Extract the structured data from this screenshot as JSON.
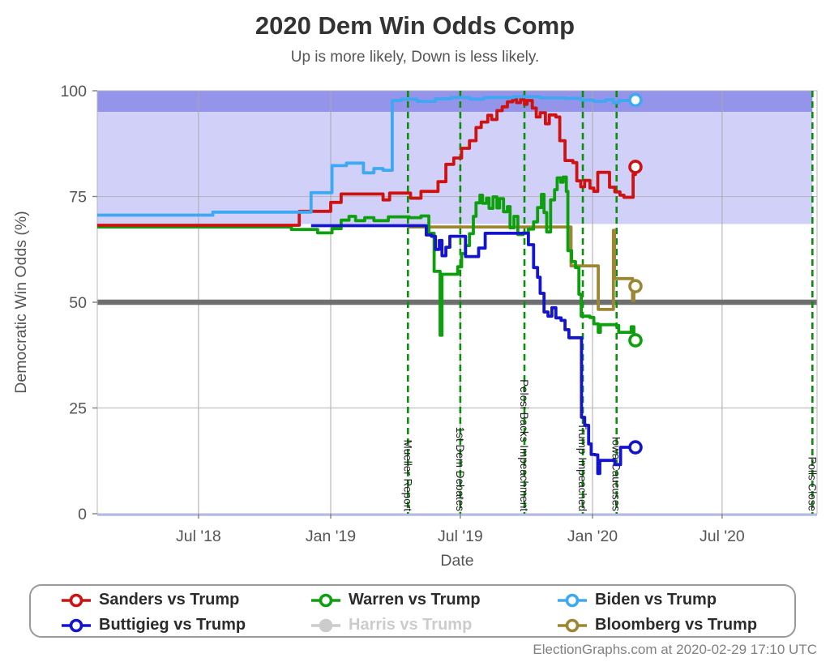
{
  "header": {
    "title": "2020 Dem Win Odds Comp",
    "subtitle": "Up is more likely, Down is less likely."
  },
  "footer": {
    "credit": "ElectionGraphs.com at 2020-02-29 17:10 UTC"
  },
  "legend": {
    "items": [
      {
        "id": "sanders",
        "label": "Sanders vs Trump",
        "color": "#cf1111",
        "disabled": false
      },
      {
        "id": "warren",
        "label": "Warren vs Trump",
        "color": "#0d9f0d",
        "disabled": false
      },
      {
        "id": "biden",
        "label": "Biden vs Trump",
        "color": "#3ea8f2",
        "disabled": false
      },
      {
        "id": "buttigieg",
        "label": "Buttigieg vs Trump",
        "color": "#1414cc",
        "disabled": false
      },
      {
        "id": "harris",
        "label": "Harris vs Trump",
        "color": "#cccccc",
        "disabled": true
      },
      {
        "id": "bloomberg",
        "label": "Bloomberg vs Trump",
        "color": "#9b8733",
        "disabled": false
      }
    ]
  },
  "chart_data": {
    "type": "line",
    "title": "2020 Dem Win Odds Comp",
    "subtitle": "Up is more likely, Down is less likely.",
    "xlabel": "Date",
    "ylabel": "Democratic Win Odds (%)",
    "ylim": [
      0,
      100
    ],
    "yticks": [
      0,
      25,
      50,
      75,
      100
    ],
    "x_domain_decimal_years": [
      2018.108,
      2020.857
    ],
    "xticks": [
      {
        "label": "Jul '18",
        "date": 2018.495
      },
      {
        "label": "Jan '19",
        "date": 2019.0
      },
      {
        "label": "Jul '19",
        "date": 2019.495
      },
      {
        "label": "Jan '20",
        "date": 2020.0
      },
      {
        "label": "Jul '20",
        "date": 2020.495
      }
    ],
    "bands": [
      {
        "from": 95,
        "to": 100,
        "color": "#9394ea"
      },
      {
        "from": 68.5,
        "to": 95,
        "color": "#d0d0f8"
      }
    ],
    "reference_line": {
      "value": 50,
      "color": "#6f6f6f"
    },
    "grid": true,
    "legend_position": "bottom",
    "events": [
      {
        "id": "mueller-report",
        "label": "Mueller Report",
        "date": 2019.295
      },
      {
        "id": "first-dem-debates",
        "label": "1st Dem Debates",
        "date": 2019.495
      },
      {
        "id": "pelosi-backs-impeachment",
        "label": "Pelosi Backs Impeachment",
        "date": 2019.74
      },
      {
        "id": "trump-impeached",
        "label": "Trump Impeached",
        "date": 2019.963
      },
      {
        "id": "iowa-caucuses",
        "label": "Iowa Caucuses",
        "date": 2020.092
      },
      {
        "id": "polls-close",
        "label": "Polls Close",
        "date": 2020.84
      }
    ],
    "end_of_data_date": 2020.164,
    "series": [
      {
        "id": "bloomberg",
        "name": "Bloomberg vs Trump",
        "color": "#9b8733",
        "end_value": 53.8,
        "points": [
          [
            2019.295,
            67.8
          ],
          [
            2019.91,
            67.8
          ],
          [
            2019.918,
            58.6
          ],
          [
            2020.015,
            58.6
          ],
          [
            2020.022,
            48.3
          ],
          [
            2020.075,
            48.3
          ],
          [
            2020.08,
            67.0
          ],
          [
            2020.084,
            55.6
          ],
          [
            2020.148,
            55.6
          ],
          [
            2020.153,
            50.4
          ],
          [
            2020.158,
            53.8
          ],
          [
            2020.164,
            53.8
          ]
        ]
      },
      {
        "id": "warren",
        "name": "Warren vs Trump",
        "color": "#0d9f0d",
        "end_value": 41.0,
        "points": [
          [
            2018.108,
            67.8
          ],
          [
            2018.85,
            67.2
          ],
          [
            2018.95,
            66.4
          ],
          [
            2019.005,
            67.4
          ],
          [
            2019.04,
            69.4
          ],
          [
            2019.07,
            70.3
          ],
          [
            2019.095,
            69.3
          ],
          [
            2019.13,
            70.0
          ],
          [
            2019.165,
            69.3
          ],
          [
            2019.22,
            70.2
          ],
          [
            2019.3,
            70.0
          ],
          [
            2019.345,
            70.4
          ],
          [
            2019.375,
            66.3
          ],
          [
            2019.395,
            57.3
          ],
          [
            2019.418,
            42.2
          ],
          [
            2019.425,
            56.6
          ],
          [
            2019.47,
            56.6
          ],
          [
            2019.485,
            58.4
          ],
          [
            2019.5,
            61.5
          ],
          [
            2019.515,
            63.4
          ],
          [
            2019.53,
            66.2
          ],
          [
            2019.545,
            70.3
          ],
          [
            2019.555,
            73.5
          ],
          [
            2019.57,
            75.3
          ],
          [
            2019.58,
            73.4
          ],
          [
            2019.595,
            74.6
          ],
          [
            2019.605,
            72.2
          ],
          [
            2019.62,
            74.9
          ],
          [
            2019.635,
            72.3
          ],
          [
            2019.645,
            74.5
          ],
          [
            2019.66,
            71.4
          ],
          [
            2019.675,
            72.6
          ],
          [
            2019.685,
            67.6
          ],
          [
            2019.7,
            70.3
          ],
          [
            2019.715,
            66.0
          ],
          [
            2019.735,
            66.4
          ],
          [
            2019.755,
            67.3
          ],
          [
            2019.775,
            69.0
          ],
          [
            2019.79,
            72.4
          ],
          [
            2019.805,
            75.5
          ],
          [
            2019.815,
            71.2
          ],
          [
            2019.825,
            66.6
          ],
          [
            2019.84,
            74.2
          ],
          [
            2019.855,
            76.6
          ],
          [
            2019.865,
            79.4
          ],
          [
            2019.878,
            78.4
          ],
          [
            2019.888,
            79.6
          ],
          [
            2019.9,
            76.2
          ],
          [
            2019.906,
            62.2
          ],
          [
            2019.92,
            59.6
          ],
          [
            2019.935,
            58.2
          ],
          [
            2019.948,
            51.9
          ],
          [
            2019.957,
            46.7
          ],
          [
            2019.99,
            46.4
          ],
          [
            2020.005,
            44.9
          ],
          [
            2020.022,
            42.9
          ],
          [
            2020.03,
            44.7
          ],
          [
            2020.09,
            44.5
          ],
          [
            2020.1,
            42.9
          ],
          [
            2020.135,
            42.9
          ],
          [
            2020.148,
            44.2
          ],
          [
            2020.158,
            41.0
          ],
          [
            2020.164,
            41.0
          ]
        ]
      },
      {
        "id": "buttigieg",
        "name": "Buttigieg vs Trump",
        "color": "#1414cc",
        "end_value": 15.7,
        "points": [
          [
            2018.925,
            68.1
          ],
          [
            2019.355,
            68.1
          ],
          [
            2019.365,
            65.9
          ],
          [
            2019.385,
            65.6
          ],
          [
            2019.4,
            62.5
          ],
          [
            2019.415,
            64.6
          ],
          [
            2019.425,
            61.0
          ],
          [
            2019.44,
            63.0
          ],
          [
            2019.455,
            65.6
          ],
          [
            2019.505,
            65.6
          ],
          [
            2019.515,
            60.8
          ],
          [
            2019.55,
            60.8
          ],
          [
            2019.565,
            62.8
          ],
          [
            2019.59,
            66.3
          ],
          [
            2019.74,
            66.3
          ],
          [
            2019.755,
            63.6
          ],
          [
            2019.775,
            58.2
          ],
          [
            2019.79,
            55.9
          ],
          [
            2019.8,
            52.1
          ],
          [
            2019.815,
            47.7
          ],
          [
            2019.83,
            46.7
          ],
          [
            2019.845,
            48.7
          ],
          [
            2019.86,
            46.3
          ],
          [
            2019.88,
            45.7
          ],
          [
            2019.895,
            43.5
          ],
          [
            2019.91,
            41.6
          ],
          [
            2019.955,
            41.6
          ],
          [
            2019.958,
            22.8
          ],
          [
            2019.97,
            20.9
          ],
          [
            2019.985,
            16.5
          ],
          [
            2019.995,
            14.0
          ],
          [
            2020.01,
            13.9
          ],
          [
            2020.02,
            9.5
          ],
          [
            2020.028,
            12.6
          ],
          [
            2020.075,
            12.6
          ],
          [
            2020.085,
            11.6
          ],
          [
            2020.103,
            11.6
          ],
          [
            2020.107,
            15.7
          ],
          [
            2020.164,
            15.7
          ]
        ]
      },
      {
        "id": "sanders",
        "name": "Sanders vs Trump",
        "color": "#cf1111",
        "end_value": 82.0,
        "points": [
          [
            2018.108,
            68.2
          ],
          [
            2018.88,
            71.5
          ],
          [
            2019.0,
            73.6
          ],
          [
            2019.04,
            75.6
          ],
          [
            2019.2,
            74.2
          ],
          [
            2019.225,
            75.8
          ],
          [
            2019.305,
            74.6
          ],
          [
            2019.345,
            76.2
          ],
          [
            2019.41,
            78.5
          ],
          [
            2019.44,
            82.6
          ],
          [
            2019.47,
            84.1
          ],
          [
            2019.5,
            86.4
          ],
          [
            2019.53,
            88.2
          ],
          [
            2019.555,
            91.3
          ],
          [
            2019.575,
            92.6
          ],
          [
            2019.6,
            94.2
          ],
          [
            2019.615,
            93.2
          ],
          [
            2019.635,
            95.3
          ],
          [
            2019.655,
            96.2
          ],
          [
            2019.675,
            97.4
          ],
          [
            2019.695,
            97.9
          ],
          [
            2019.71,
            97.2
          ],
          [
            2019.725,
            97.9
          ],
          [
            2019.74,
            96.8
          ],
          [
            2019.75,
            97.7
          ],
          [
            2019.77,
            95.9
          ],
          [
            2019.785,
            93.8
          ],
          [
            2019.8,
            94.8
          ],
          [
            2019.82,
            92.2
          ],
          [
            2019.835,
            94.3
          ],
          [
            2019.86,
            93.8
          ],
          [
            2019.875,
            88.2
          ],
          [
            2019.895,
            83.5
          ],
          [
            2019.925,
            83.0
          ],
          [
            2019.94,
            78.7
          ],
          [
            2019.955,
            77.3
          ],
          [
            2019.97,
            78.8
          ],
          [
            2019.99,
            77.0
          ],
          [
            2020.005,
            76.2
          ],
          [
            2020.02,
            80.7
          ],
          [
            2020.055,
            80.7
          ],
          [
            2020.065,
            77.2
          ],
          [
            2020.085,
            76.1
          ],
          [
            2020.105,
            75.3
          ],
          [
            2020.12,
            74.8
          ],
          [
            2020.148,
            74.8
          ],
          [
            2020.155,
            80.2
          ],
          [
            2020.164,
            82.0
          ]
        ]
      },
      {
        "id": "biden",
        "name": "Biden vs Trump",
        "color": "#3ea8f2",
        "end_value": 97.8,
        "points": [
          [
            2018.108,
            70.6
          ],
          [
            2018.55,
            71.3
          ],
          [
            2018.925,
            75.9
          ],
          [
            2019.005,
            82.3
          ],
          [
            2019.06,
            82.9
          ],
          [
            2019.125,
            80.6
          ],
          [
            2019.165,
            81.6
          ],
          [
            2019.2,
            81.2
          ],
          [
            2019.235,
            97.7
          ],
          [
            2019.27,
            98.0
          ],
          [
            2019.33,
            97.5
          ],
          [
            2019.4,
            98.1
          ],
          [
            2019.46,
            98.4
          ],
          [
            2019.53,
            98.0
          ],
          [
            2019.585,
            98.4
          ],
          [
            2019.7,
            98.6
          ],
          [
            2019.8,
            98.3
          ],
          [
            2019.9,
            98.2
          ],
          [
            2019.955,
            97.8
          ],
          [
            2020.005,
            97.5
          ],
          [
            2020.05,
            97.9
          ],
          [
            2020.08,
            97.2
          ],
          [
            2020.1,
            97.7
          ],
          [
            2020.164,
            97.8
          ]
        ]
      }
    ]
  }
}
